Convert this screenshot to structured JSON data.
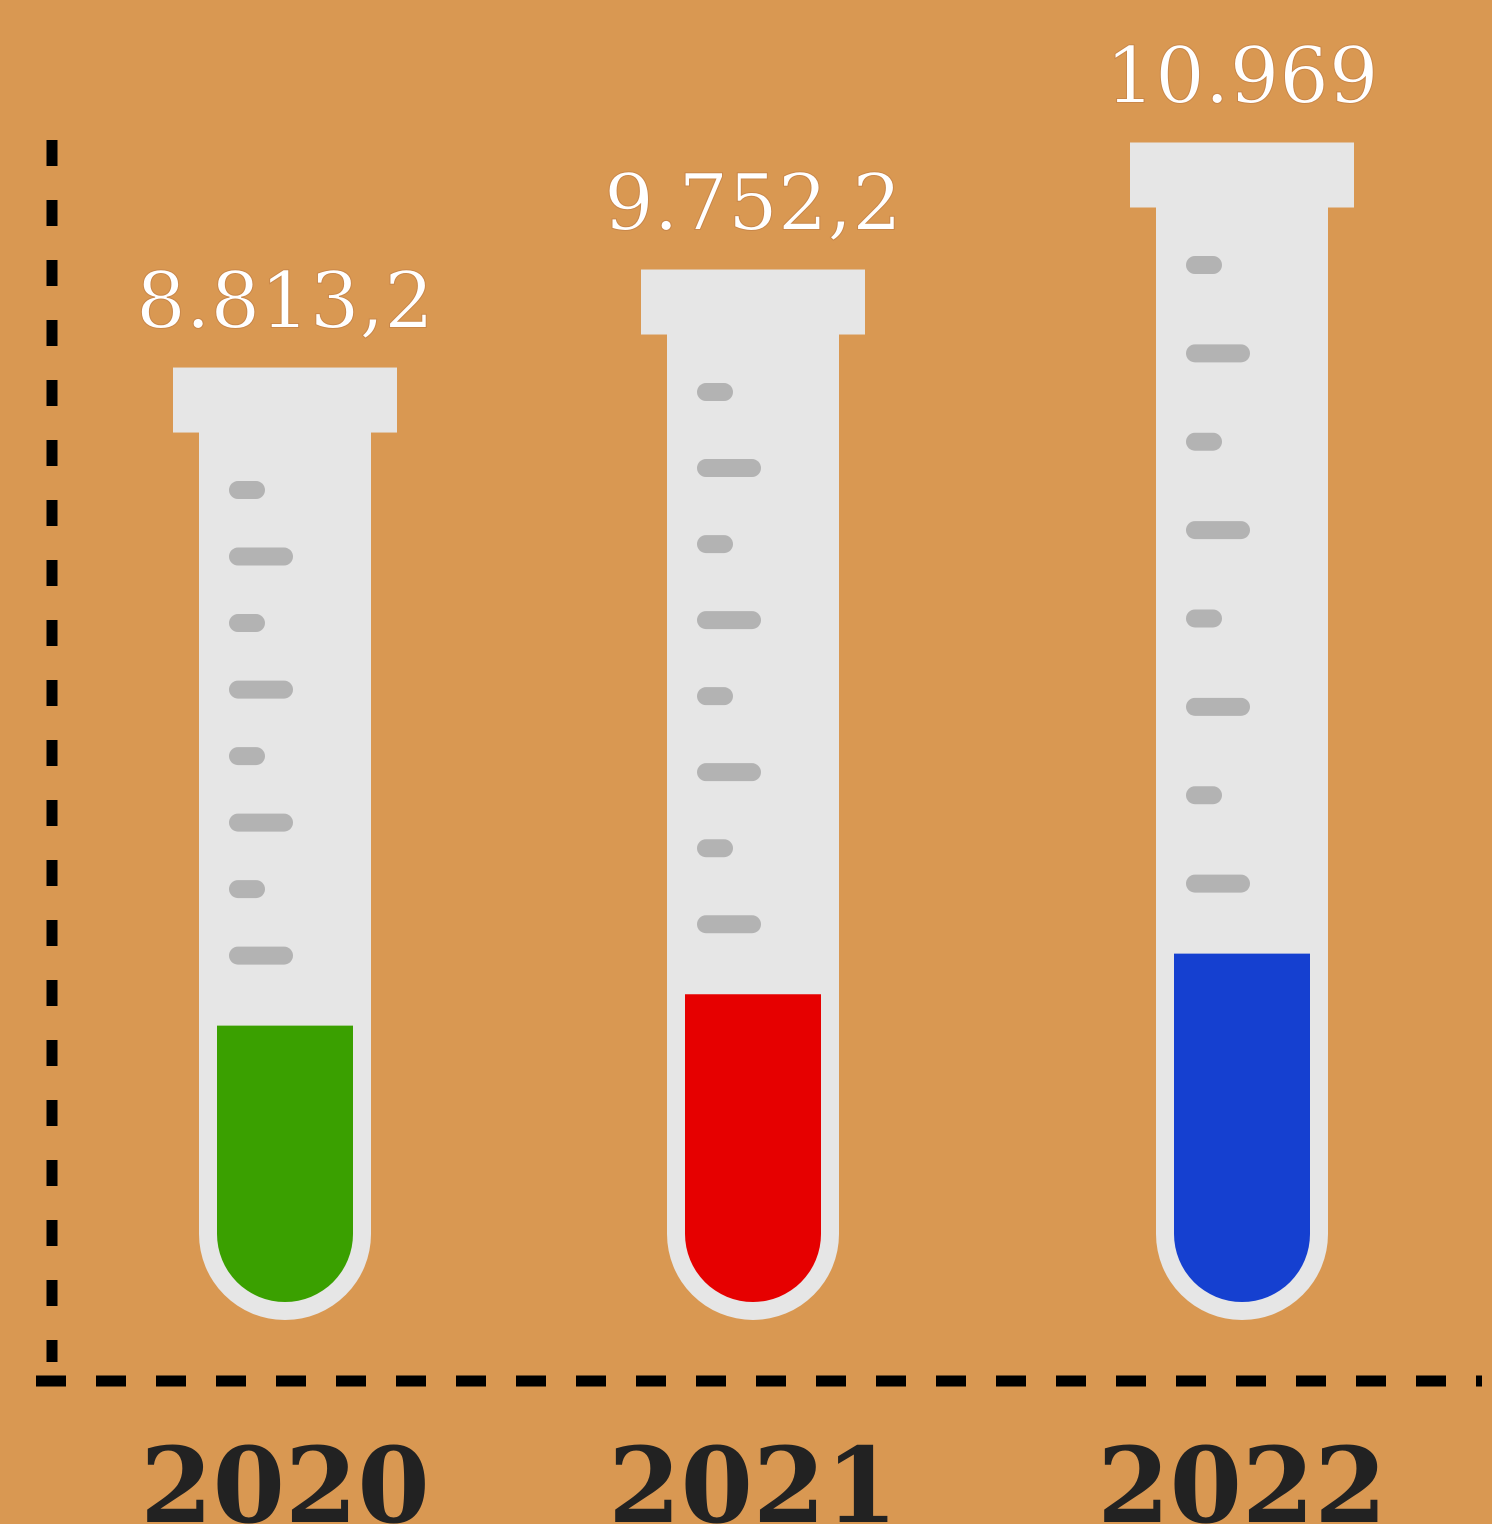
{
  "chart_data": {
    "type": "bar",
    "categories": [
      "2020",
      "2021",
      "2022"
    ],
    "values": [
      8813.2,
      9752.2,
      10969
    ],
    "value_labels": [
      "8.813,2",
      "9.752,2",
      "10.969"
    ],
    "colors": [
      "#3aa000",
      "#e60000",
      "#1540d0"
    ]
  }
}
